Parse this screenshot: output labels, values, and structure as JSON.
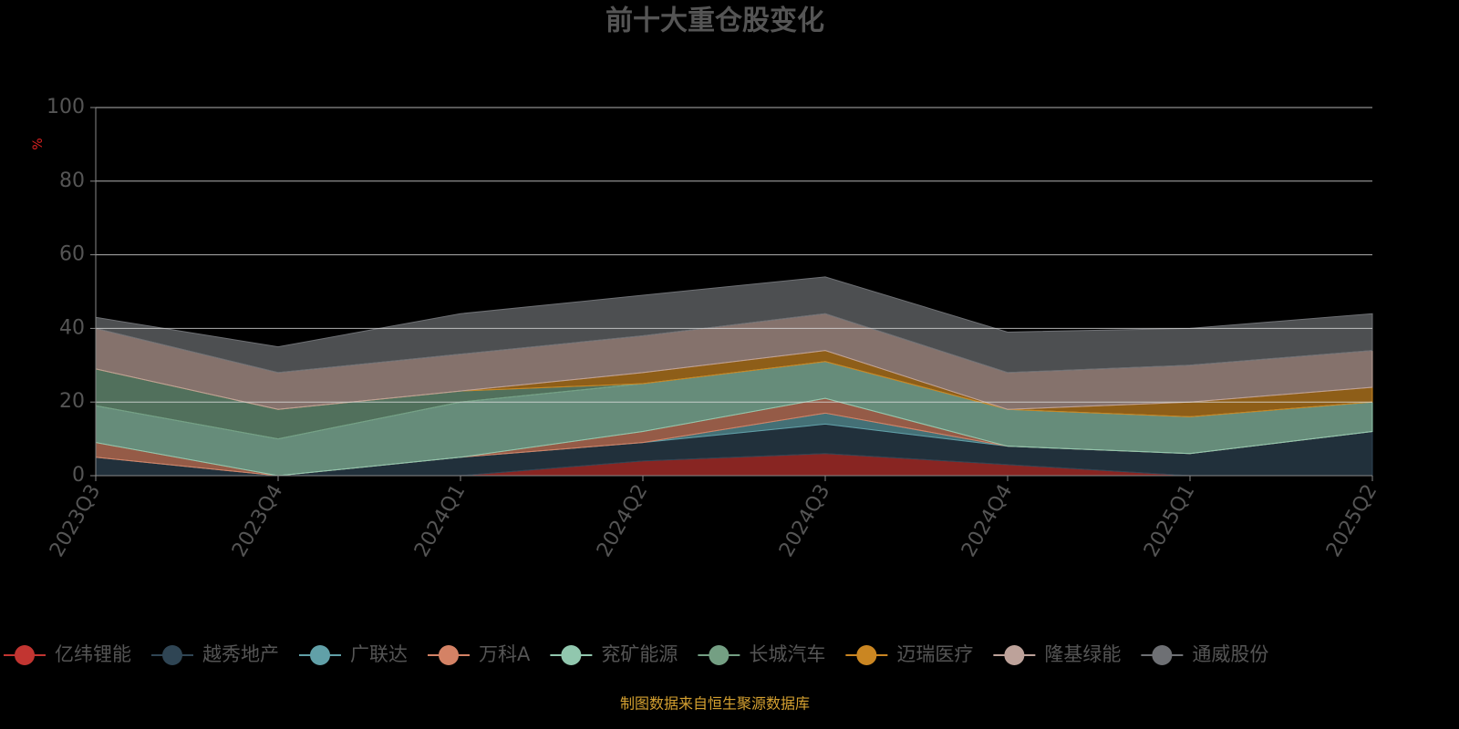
{
  "chart_data": {
    "type": "stacked_area",
    "title": "前十大重仓股变化",
    "y_label": "%",
    "source": "制图数据来自恒生聚源数据库",
    "categories": [
      "2023Q3",
      "2023Q4",
      "2024Q1",
      "2024Q2",
      "2024Q3",
      "2024Q4",
      "2025Q1",
      "2025Q2"
    ],
    "ylim": [
      0,
      100
    ],
    "yticks": [
      0,
      20,
      40,
      60,
      80,
      100
    ],
    "grid": true,
    "series": [
      {
        "name": "亿纬锂能",
        "color": "#c23531",
        "values": [
          0,
          0,
          0,
          4,
          6,
          3,
          0,
          0
        ]
      },
      {
        "name": "越秀地产",
        "color": "#2f4554",
        "values": [
          5,
          0,
          5,
          5,
          8,
          5,
          6,
          12
        ]
      },
      {
        "name": "广联达",
        "color": "#61a0a8",
        "values": [
          0,
          0,
          0,
          0,
          3,
          0,
          0,
          0
        ]
      },
      {
        "name": "万科A",
        "color": "#d48265",
        "values": [
          4,
          0,
          0,
          3,
          4,
          0,
          0,
          0
        ]
      },
      {
        "name": "兖矿能源",
        "color": "#91c7ae",
        "values": [
          10,
          10,
          15,
          13,
          10,
          10,
          10,
          8
        ]
      },
      {
        "name": "长城汽车",
        "color": "#749f83",
        "values": [
          10,
          8,
          3,
          0,
          0,
          0,
          0,
          0
        ]
      },
      {
        "name": "迈瑞医疗",
        "color": "#ca8622",
        "values": [
          0,
          0,
          0,
          3,
          3,
          0,
          4,
          4
        ]
      },
      {
        "name": "隆基绿能",
        "color": "#bda29a",
        "values": [
          11,
          10,
          10,
          10,
          10,
          10,
          10,
          10
        ]
      },
      {
        "name": "通威股份",
        "color": "#6e7074",
        "values": [
          3,
          7,
          11,
          11,
          10,
          11,
          10,
          10
        ]
      }
    ]
  }
}
